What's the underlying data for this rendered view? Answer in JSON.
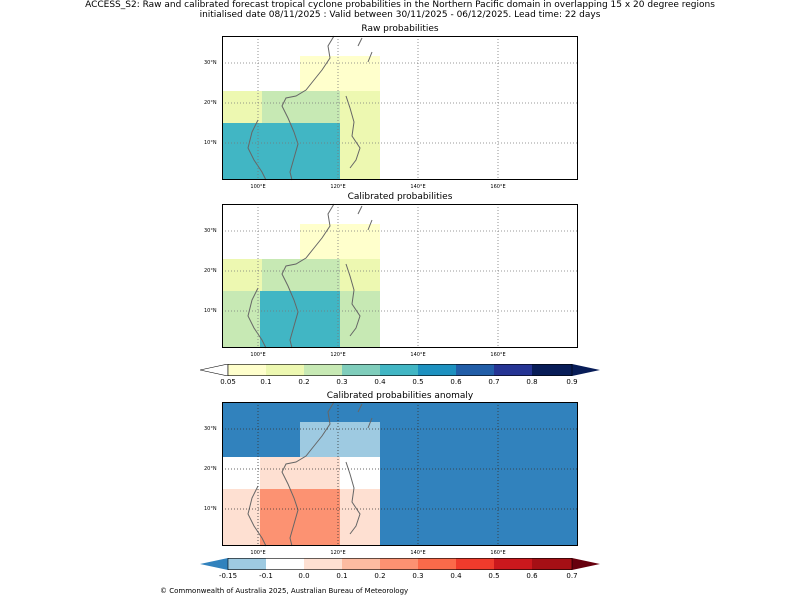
{
  "header": {
    "title_line1": "ACCESS_S2: Raw and calibrated forecast tropical cyclone probabilities in the Northern Pacific domain in overlapping 15 x 20 degree regions",
    "title_line2": "initialised date 08/11/2025 :  Valid between 30/11/2025 - 06/12/2025. Lead time: 22 days"
  },
  "axes": {
    "lat_labels": [
      "30°N",
      "20°N",
      "10°N"
    ],
    "lon_labels": [
      "100°E",
      "120°E",
      "140°E",
      "160°E"
    ]
  },
  "panels": [
    {
      "title": "Raw probabilities",
      "cells": [
        {
          "region": "10-25N 90-110E",
          "value": 0.1
        },
        {
          "region": "25-35N 90-110E",
          "value": null
        },
        {
          "region": "25-35N 110-130E",
          "value": 0.05
        },
        {
          "region": "20-25N 110-120E",
          "value": 0.2
        },
        {
          "region": "20-25N 120-130E",
          "value": 0.1
        },
        {
          "region": "0-15N 90-120E",
          "value": 0.4
        },
        {
          "region": "0-15N 120-130E",
          "value": 0.1
        },
        {
          "region": "other",
          "value": null
        }
      ]
    },
    {
      "title": "Calibrated probabilities",
      "cells": [
        {
          "region": "20-25N 90-110E",
          "value": 0.1
        },
        {
          "region": "25-35N 110-130E",
          "value": 0.05
        },
        {
          "region": "15-25N 100-130E",
          "value": 0.2
        },
        {
          "region": "0-15N 100-120E",
          "value": 0.4
        },
        {
          "region": "0-15N 90-100E",
          "value": 0.2
        },
        {
          "region": "0-15N 120-130E",
          "value": 0.2
        }
      ]
    },
    {
      "title": "Calibrated probabilities anomaly",
      "cells": [
        {
          "region": "background",
          "value": -0.15
        },
        {
          "region": "25-35N 110-130E",
          "value": -0.1
        },
        {
          "region": "0-23N 90-100E",
          "value": 0.05
        },
        {
          "region": "15-23N 100-120E",
          "value": 0.05
        },
        {
          "region": "0-15N 100-120E",
          "value": 0.2
        },
        {
          "region": "15-25N 120-130E",
          "value": 0.0
        },
        {
          "region": "0-15N 120-130E",
          "value": 0.05
        }
      ]
    }
  ],
  "colorbar_prob": {
    "labels": [
      "0.05",
      "0.1",
      "0.2",
      "0.3",
      "0.4",
      "0.5",
      "0.6",
      "0.7",
      "0.8",
      "0.9"
    ],
    "colors": [
      "#ffffff",
      "#ffffcc",
      "#edf8b1",
      "#c7e9b4",
      "#7fcdbb",
      "#41b6c4",
      "#1d91c0",
      "#225ea8",
      "#253494",
      "#081d58"
    ]
  },
  "colorbar_anom": {
    "labels": [
      "-0.15",
      "-0.1",
      "0.0",
      "0.1",
      "0.2",
      "0.3",
      "0.4",
      "0.5",
      "0.6",
      "0.7"
    ],
    "colors": [
      "#3182bd",
      "#9ecae1",
      "#ffffff",
      "#fee0d2",
      "#fcbba1",
      "#fc9272",
      "#fb6a4a",
      "#ef3b2c",
      "#cb181d",
      "#a50f15",
      "#67000d"
    ]
  },
  "footer": {
    "copyright": "© Commonwealth of Australia 2025, Australian Bureau of Meteorology"
  }
}
